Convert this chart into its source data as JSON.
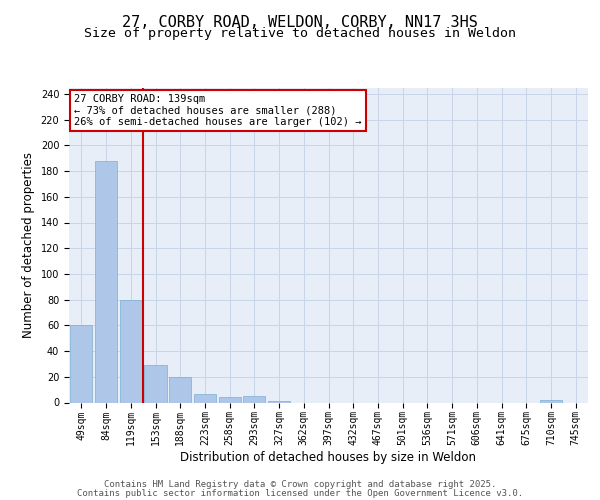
{
  "title_line1": "27, CORBY ROAD, WELDON, CORBY, NN17 3HS",
  "title_line2": "Size of property relative to detached houses in Weldon",
  "xlabel": "Distribution of detached houses by size in Weldon",
  "ylabel": "Number of detached properties",
  "categories": [
    "49sqm",
    "84sqm",
    "119sqm",
    "153sqm",
    "188sqm",
    "223sqm",
    "258sqm",
    "293sqm",
    "327sqm",
    "362sqm",
    "397sqm",
    "432sqm",
    "467sqm",
    "501sqm",
    "536sqm",
    "571sqm",
    "606sqm",
    "641sqm",
    "675sqm",
    "710sqm",
    "745sqm"
  ],
  "values": [
    60,
    188,
    80,
    29,
    20,
    7,
    4,
    5,
    1,
    0,
    0,
    0,
    0,
    0,
    0,
    0,
    0,
    0,
    0,
    2,
    0
  ],
  "bar_color": "#aec6e8",
  "bar_edge_color": "#7aafd4",
  "grid_color": "#c8d4e8",
  "background_color": "#e8eef8",
  "vline_x": 2.5,
  "vline_color": "#cc0000",
  "annotation_text": "27 CORBY ROAD: 139sqm\n← 73% of detached houses are smaller (288)\n26% of semi-detached houses are larger (102) →",
  "annotation_box_color": "#cc0000",
  "footer_line1": "Contains HM Land Registry data © Crown copyright and database right 2025.",
  "footer_line2": "Contains public sector information licensed under the Open Government Licence v3.0.",
  "ylim": [
    0,
    245
  ],
  "yticks": [
    0,
    20,
    40,
    60,
    80,
    100,
    120,
    140,
    160,
    180,
    200,
    220,
    240
  ],
  "title_fontsize": 11,
  "subtitle_fontsize": 9.5,
  "tick_fontsize": 7,
  "label_fontsize": 8.5,
  "footer_fontsize": 6.5,
  "ann_fontsize": 7.5
}
